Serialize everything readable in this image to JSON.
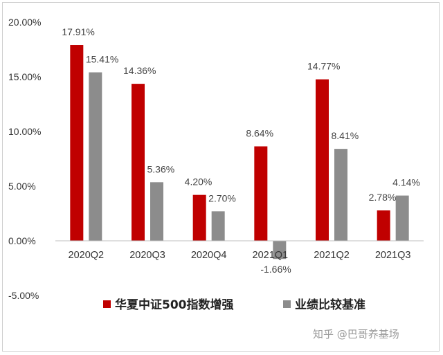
{
  "chart_data": {
    "type": "bar",
    "categories": [
      "2020Q2",
      "2020Q3",
      "2020Q4",
      "2021Q1",
      "2021Q2",
      "2021Q3"
    ],
    "series": [
      {
        "name": "华夏中证500指数增强",
        "values": [
          17.91,
          14.36,
          4.2,
          8.64,
          14.77,
          2.78
        ],
        "labels": [
          "17.91%",
          "14.36%",
          "4.20%",
          "8.64%",
          "14.77%",
          "2.78%"
        ],
        "color": "#c00000"
      },
      {
        "name": "业绩比较基准",
        "values": [
          15.41,
          5.36,
          2.7,
          -1.66,
          8.41,
          4.14
        ],
        "labels": [
          "15.41%",
          "5.36%",
          "2.70%",
          "-1.66%",
          "8.41%",
          "4.14%"
        ],
        "color": "#8c8c8c"
      }
    ],
    "yticks": [
      "20.00%",
      "15.00%",
      "10.00%",
      "5.00%",
      "0.00%",
      "-5.00%"
    ],
    "ytick_values": [
      20,
      15,
      10,
      5,
      0,
      -5
    ],
    "ylim": [
      -5,
      20
    ],
    "grid": false,
    "legend_position": "bottom"
  },
  "watermark": "知乎 @巴哥养基场"
}
